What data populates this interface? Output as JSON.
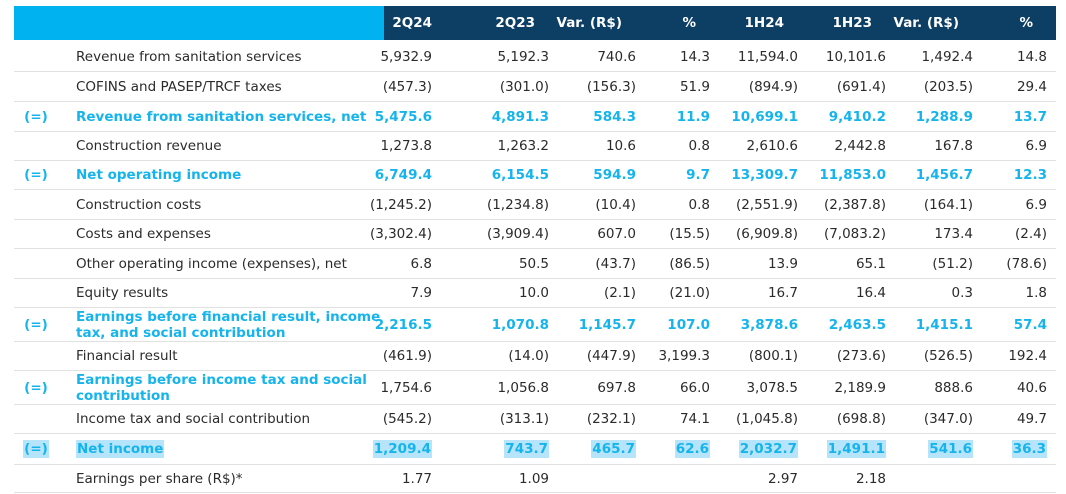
{
  "header": {
    "columns": [
      "2Q24",
      "2Q23",
      "Var. (R$)",
      "%",
      "1H24",
      "1H23",
      "Var. (R$)",
      "%"
    ]
  },
  "rows": [
    {
      "sym": "",
      "label": "Revenue from sanitation services",
      "values": [
        "5,932.9",
        "5,192.3",
        "740.6",
        "14.3",
        "11,594.0",
        "10,101.6",
        "1,492.4",
        "14.8"
      ]
    },
    {
      "sym": "",
      "label": "COFINS and PASEP/TRCF taxes",
      "values": [
        "(457.3)",
        "(301.0)",
        "(156.3)",
        "51.9",
        "(894.9)",
        "(691.4)",
        "(203.5)",
        "29.4"
      ]
    },
    {
      "sym": "(=)",
      "label": "Revenue from sanitation services, net",
      "values": [
        "5,475.6",
        "4,891.3",
        "584.3",
        "11.9",
        "10,699.1",
        "9,410.2",
        "1,288.9",
        "13.7"
      ]
    },
    {
      "sym": "",
      "label": "Construction revenue",
      "values": [
        "1,273.8",
        "1,263.2",
        "10.6",
        "0.8",
        "2,610.6",
        "2,442.8",
        "167.8",
        "6.9"
      ]
    },
    {
      "sym": "(=)",
      "label": "Net operating income",
      "values": [
        "6,749.4",
        "6,154.5",
        "594.9",
        "9.7",
        "13,309.7",
        "11,853.0",
        "1,456.7",
        "12.3"
      ]
    },
    {
      "sym": "",
      "label": "Construction costs",
      "values": [
        "(1,245.2)",
        "(1,234.8)",
        "(10.4)",
        "0.8",
        "(2,551.9)",
        "(2,387.8)",
        "(164.1)",
        "6.9"
      ]
    },
    {
      "sym": "",
      "label": "Costs and expenses",
      "values": [
        "(3,302.4)",
        "(3,909.4)",
        "607.0",
        "(15.5)",
        "(6,909.8)",
        "(7,083.2)",
        "173.4",
        "(2.4)"
      ]
    },
    {
      "sym": "",
      "label": "Other operating income (expenses), net",
      "values": [
        "6.8",
        "50.5",
        "(43.7)",
        "(86.5)",
        "13.9",
        "65.1",
        "(51.2)",
        "(78.6)"
      ]
    },
    {
      "sym": "",
      "label": "Equity results",
      "values": [
        "7.9",
        "10.0",
        "(2.1)",
        "(21.0)",
        "16.7",
        "16.4",
        "0.3",
        "1.8"
      ]
    },
    {
      "sym": "(=)",
      "label": "Earnings before financial result, income tax, and social contribution",
      "values": [
        "2,216.5",
        "1,070.8",
        "1,145.7",
        "107.0",
        "3,878.6",
        "2,463.5",
        "1,415.1",
        "57.4"
      ]
    },
    {
      "sym": "",
      "label": "Financial result",
      "values": [
        "(461.9)",
        "(14.0)",
        "(447.9)",
        "3,199.3",
        "(800.1)",
        "(273.6)",
        "(526.5)",
        "192.4"
      ]
    },
    {
      "sym": "(=)",
      "label": "Earnings before income tax and social contribution",
      "values": [
        "1,754.6",
        "1,056.8",
        "697.8",
        "66.0",
        "3,078.5",
        "2,189.9",
        "888.6",
        "40.6"
      ]
    },
    {
      "sym": "",
      "label": "Income tax and social contribution",
      "values": [
        "(545.2)",
        "(313.1)",
        "(232.1)",
        "74.1",
        "(1,045.8)",
        "(698.8)",
        "(347.0)",
        "49.7"
      ]
    },
    {
      "sym": "(=)",
      "label": "Net income",
      "values": [
        "1,209.4",
        "743.7",
        "465.7",
        "62.6",
        "2,032.7",
        "1,491.1",
        "541.6",
        "36.3"
      ]
    },
    {
      "sym": "",
      "label": "Earnings per share (R$)*",
      "values": [
        "1.77",
        "1.09",
        "",
        "",
        "2.97",
        "2.18",
        "",
        ""
      ]
    }
  ]
}
